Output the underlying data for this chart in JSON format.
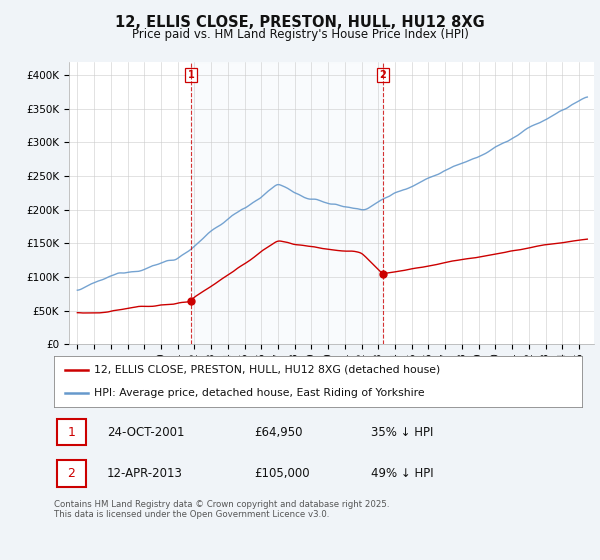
{
  "title": "12, ELLIS CLOSE, PRESTON, HULL, HU12 8XG",
  "subtitle": "Price paid vs. HM Land Registry's House Price Index (HPI)",
  "ylim": [
    0,
    420000
  ],
  "yticks": [
    0,
    50000,
    100000,
    150000,
    200000,
    250000,
    300000,
    350000,
    400000
  ],
  "ytick_labels": [
    "£0",
    "£50K",
    "£100K",
    "£150K",
    "£200K",
    "£250K",
    "£300K",
    "£350K",
    "£400K"
  ],
  "legend_line1": "12, ELLIS CLOSE, PRESTON, HULL, HU12 8XG (detached house)",
  "legend_line2": "HPI: Average price, detached house, East Riding of Yorkshire",
  "sale1_date": "24-OCT-2001",
  "sale1_price": 64950,
  "sale1_label": "35% ↓ HPI",
  "sale1_year": 2001.79,
  "sale2_date": "12-APR-2013",
  "sale2_price": 105000,
  "sale2_label": "49% ↓ HPI",
  "sale2_year": 2013.28,
  "footer": "Contains HM Land Registry data © Crown copyright and database right 2025.\nThis data is licensed under the Open Government Licence v3.0.",
  "line_color_red": "#cc0000",
  "line_color_blue": "#6699cc",
  "fill_color_blue": "#dce9f5",
  "vline_color": "#cc0000",
  "background_color": "#f0f4f8",
  "plot_bg_color": "#ffffff",
  "grid_color": "#cccccc"
}
